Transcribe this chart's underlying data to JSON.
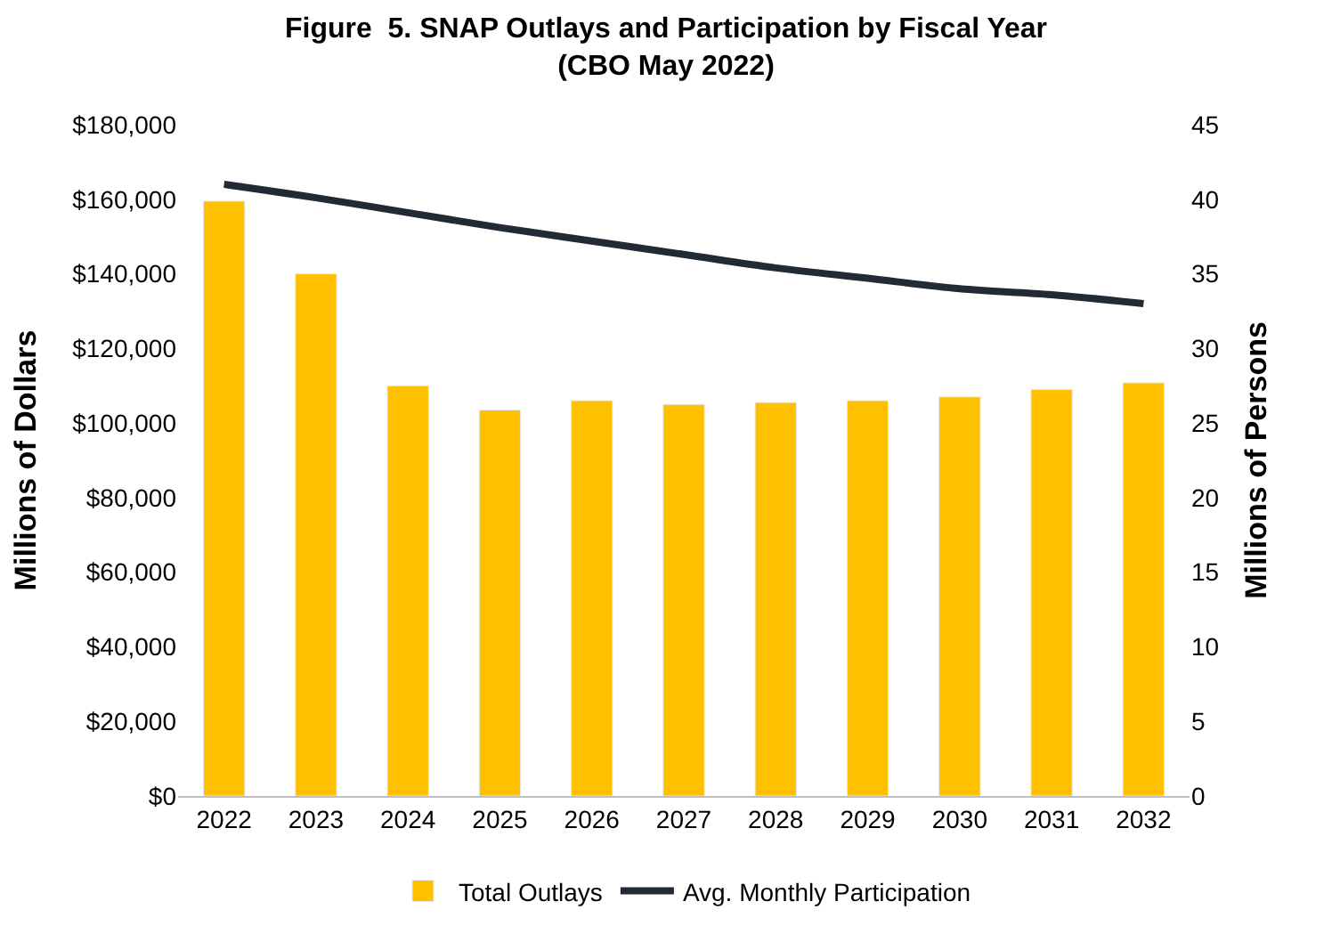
{
  "chart_data": {
    "type": "bar",
    "title": "Figure  5. SNAP Outlays and Participation by Fiscal Year\n(CBO May 2022)",
    "ylabel": "Millions of Dollars",
    "y2label": "Millions of Persons",
    "categories": [
      "2022",
      "2023",
      "2024",
      "2025",
      "2026",
      "2027",
      "2028",
      "2029",
      "2030",
      "2031",
      "2032"
    ],
    "series": [
      {
        "name": "Total Outlays",
        "color": "#ffc000",
        "values": [
          159500,
          140000,
          110000,
          103500,
          106000,
          105000,
          105500,
          106000,
          107000,
          109000,
          110800
        ]
      },
      {
        "name": "Avg. Monthly Participation",
        "type": "line",
        "axis": "y2",
        "color": "#222a35",
        "values": [
          41.0,
          40.1,
          39.1,
          38.1,
          37.2,
          36.3,
          35.4,
          34.7,
          34.0,
          33.6,
          33.0
        ]
      }
    ],
    "ylim": [
      0,
      180000
    ],
    "yticks": [
      {
        "value": 0,
        "label": "$0"
      },
      {
        "value": 20000,
        "label": "$20,000"
      },
      {
        "value": 40000,
        "label": "$40,000"
      },
      {
        "value": 60000,
        "label": "$60,000"
      },
      {
        "value": 80000,
        "label": "$80,000"
      },
      {
        "value": 100000,
        "label": "$100,000"
      },
      {
        "value": 120000,
        "label": "$120,000"
      },
      {
        "value": 140000,
        "label": "$140,000"
      },
      {
        "value": 160000,
        "label": "$160,000"
      },
      {
        "value": 180000,
        "label": "$180,000"
      }
    ],
    "y2lim": [
      0,
      45
    ],
    "y2ticks": [
      0,
      5,
      10,
      15,
      20,
      25,
      30,
      35,
      40,
      45
    ],
    "legend": "bottom",
    "marker": "none",
    "line_style": "solid"
  }
}
